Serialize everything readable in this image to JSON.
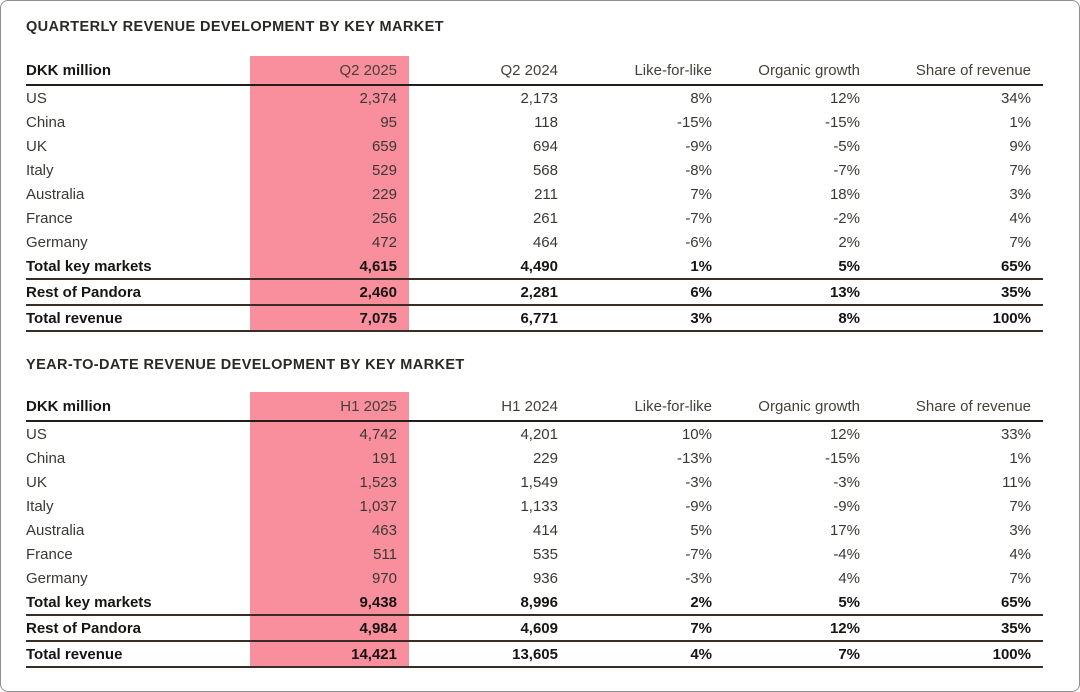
{
  "page": {
    "background_color": "#ffffff",
    "frame_border_color": "#909090",
    "highlight_color": "#f98e9d"
  },
  "tables": [
    {
      "title": "QUARTERLY REVENUE DEVELOPMENT BY KEY MARKET",
      "unit_label": "DKK million",
      "columns": [
        "DKK million",
        "Q2 2025",
        "Q2 2024",
        "Like-for-like",
        "Organic growth",
        "Share of revenue"
      ],
      "highlight_column": 1,
      "rows": [
        {
          "label": "US",
          "cells": [
            "2,374",
            "2,173",
            "8%",
            "12%",
            "34%"
          ],
          "bold": false,
          "rule_below": false
        },
        {
          "label": "China",
          "cells": [
            "95",
            "118",
            "-15%",
            "-15%",
            "1%"
          ],
          "bold": false,
          "rule_below": false
        },
        {
          "label": "UK",
          "cells": [
            "659",
            "694",
            "-9%",
            "-5%",
            "9%"
          ],
          "bold": false,
          "rule_below": false
        },
        {
          "label": "Italy",
          "cells": [
            "529",
            "568",
            "-8%",
            "-7%",
            "7%"
          ],
          "bold": false,
          "rule_below": false
        },
        {
          "label": "Australia",
          "cells": [
            "229",
            "211",
            "7%",
            "18%",
            "3%"
          ],
          "bold": false,
          "rule_below": false
        },
        {
          "label": "France",
          "cells": [
            "256",
            "261",
            "-7%",
            "-2%",
            "4%"
          ],
          "bold": false,
          "rule_below": false
        },
        {
          "label": "Germany",
          "cells": [
            "472",
            "464",
            "-6%",
            "2%",
            "7%"
          ],
          "bold": false,
          "rule_below": false
        },
        {
          "label": "Total key markets",
          "cells": [
            "4,615",
            "4,490",
            "1%",
            "5%",
            "65%"
          ],
          "bold": true,
          "rule_below": true
        },
        {
          "label": "Rest of Pandora",
          "cells": [
            "2,460",
            "2,281",
            "6%",
            "13%",
            "35%"
          ],
          "bold": true,
          "rule_below": true
        },
        {
          "label": "Total revenue",
          "cells": [
            "7,075",
            "6,771",
            "3%",
            "8%",
            "100%"
          ],
          "bold": true,
          "rule_below": true
        }
      ]
    },
    {
      "title": "YEAR-TO-DATE REVENUE DEVELOPMENT BY KEY MARKET",
      "unit_label": "DKK million",
      "columns": [
        "DKK million",
        "H1 2025",
        "H1 2024",
        "Like-for-like",
        "Organic growth",
        "Share of revenue"
      ],
      "highlight_column": 1,
      "rows": [
        {
          "label": "US",
          "cells": [
            "4,742",
            "4,201",
            "10%",
            "12%",
            "33%"
          ],
          "bold": false,
          "rule_below": false
        },
        {
          "label": "China",
          "cells": [
            "191",
            "229",
            "-13%",
            "-15%",
            "1%"
          ],
          "bold": false,
          "rule_below": false
        },
        {
          "label": "UK",
          "cells": [
            "1,523",
            "1,549",
            "-3%",
            "-3%",
            "11%"
          ],
          "bold": false,
          "rule_below": false
        },
        {
          "label": "Italy",
          "cells": [
            "1,037",
            "1,133",
            "-9%",
            "-9%",
            "7%"
          ],
          "bold": false,
          "rule_below": false
        },
        {
          "label": "Australia",
          "cells": [
            "463",
            "414",
            "5%",
            "17%",
            "3%"
          ],
          "bold": false,
          "rule_below": false
        },
        {
          "label": "France",
          "cells": [
            "511",
            "535",
            "-7%",
            "-4%",
            "4%"
          ],
          "bold": false,
          "rule_below": false
        },
        {
          "label": "Germany",
          "cells": [
            "970",
            "936",
            "-3%",
            "4%",
            "7%"
          ],
          "bold": false,
          "rule_below": false
        },
        {
          "label": "Total key markets",
          "cells": [
            "9,438",
            "8,996",
            "2%",
            "5%",
            "65%"
          ],
          "bold": true,
          "rule_below": true
        },
        {
          "label": "Rest of Pandora",
          "cells": [
            "4,984",
            "4,609",
            "7%",
            "12%",
            "35%"
          ],
          "bold": true,
          "rule_below": true
        },
        {
          "label": "Total revenue",
          "cells": [
            "14,421",
            "13,605",
            "4%",
            "7%",
            "100%"
          ],
          "bold": true,
          "rule_below": true
        }
      ]
    }
  ]
}
